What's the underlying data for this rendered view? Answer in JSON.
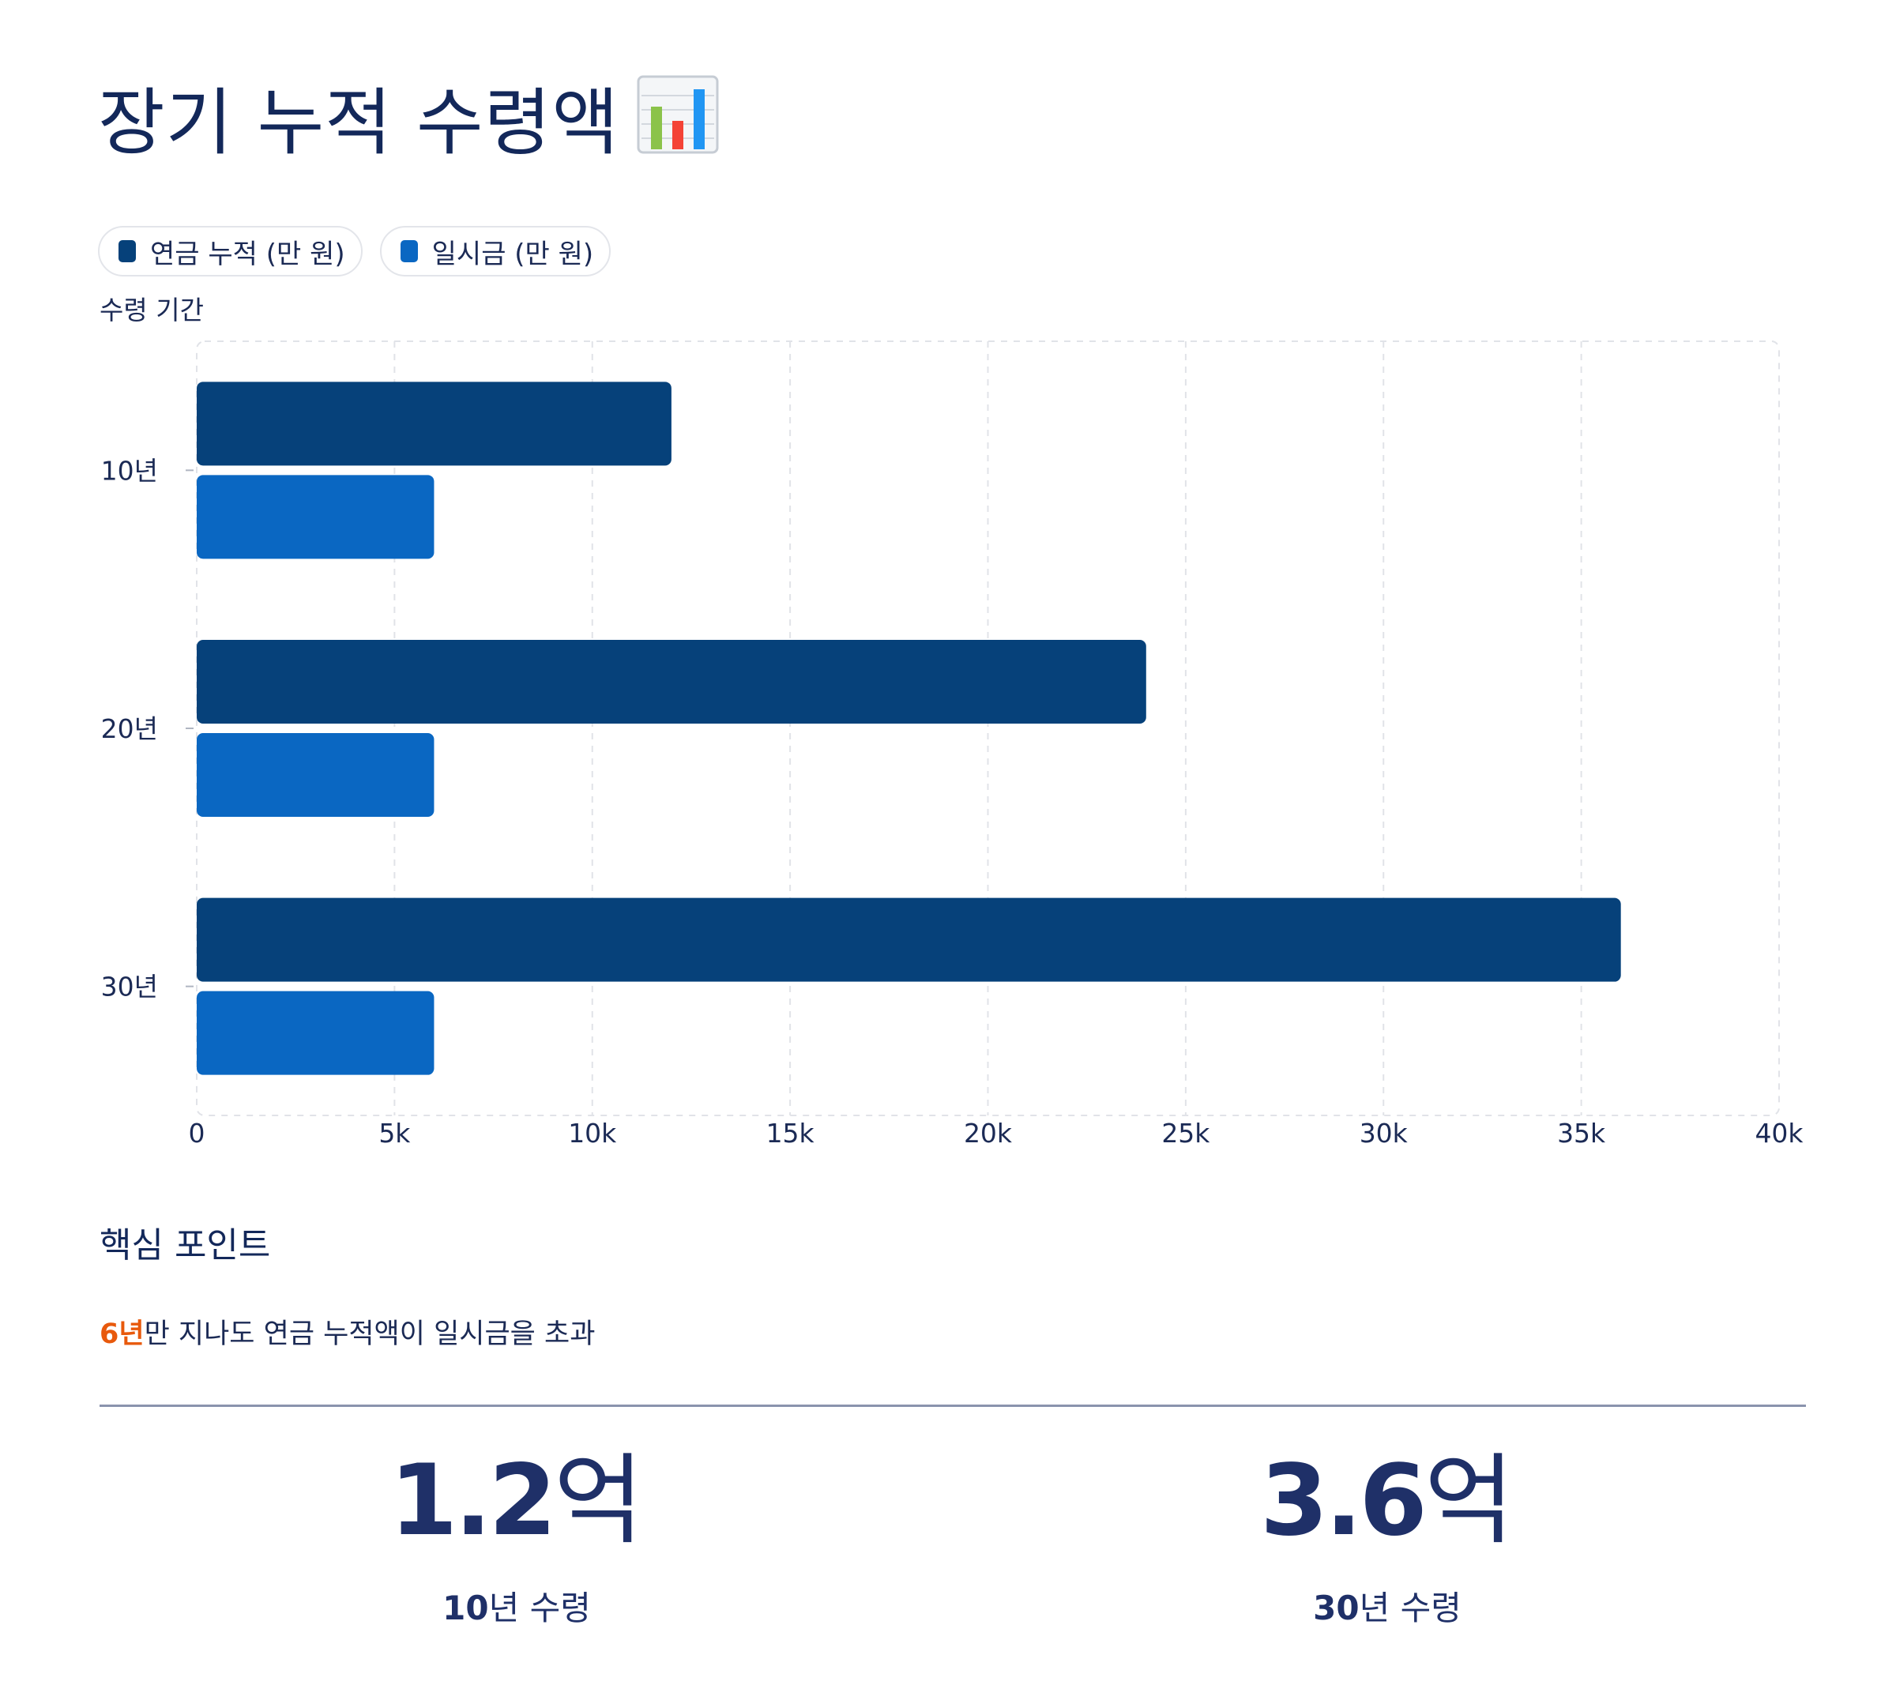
{
  "title": "장기 누적 수령액",
  "title_icon": "bar-chart-emoji-icon",
  "legend": [
    {
      "label": "연금 누적 (만 원)",
      "color": "#06417a"
    },
    {
      "label": "일시금 (만 원)",
      "color": "#0a67c2"
    }
  ],
  "y_axis_title": "수령 기간",
  "chart_data": {
    "type": "bar",
    "orientation": "horizontal",
    "categories": [
      "10년",
      "20년",
      "30년"
    ],
    "series": [
      {
        "name": "연금 누적 (만 원)",
        "color": "#06417a",
        "values": [
          12000,
          24000,
          36000
        ]
      },
      {
        "name": "일시금 (만 원)",
        "color": "#0a67c2",
        "values": [
          6000,
          6000,
          6000
        ]
      }
    ],
    "xlim": [
      0,
      40000
    ],
    "xticks": [
      0,
      5000,
      10000,
      15000,
      20000,
      25000,
      30000,
      35000,
      40000
    ],
    "xtick_labels": [
      "0",
      "5k",
      "10k",
      "15k",
      "20k",
      "25k",
      "30k",
      "35k",
      "40k"
    ],
    "ylabel": "수령 기간",
    "grid": true,
    "legend_position": "top-left"
  },
  "highlights": {
    "heading": "핵심 포인트",
    "insight_highlight": "6년",
    "insight_text": "만 지나도 연금 누적액이 일시금을 초과",
    "stats": [
      {
        "value": "1.2",
        "unit": "억",
        "label_strong": "10",
        "label_rest": "년 수령"
      },
      {
        "value": "3.6",
        "unit": "억",
        "label_strong": "30",
        "label_rest": "년 수령"
      }
    ]
  }
}
